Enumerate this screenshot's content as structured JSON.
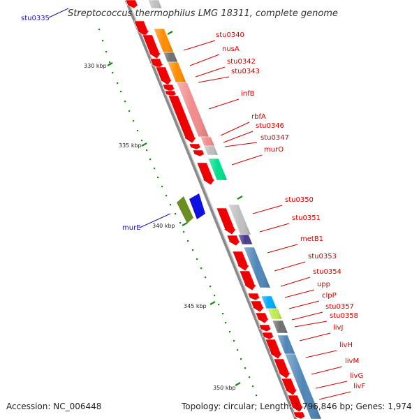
{
  "title": "Streptococcus thermophilus LMG 18311, complete genome",
  "accession": "Accession: NC_006448",
  "topology": "Topology: circular; Length: 1,796,846 bp; Genes: 1,974",
  "colors": {
    "backbone": "#888888",
    "gene_arrow": "#ee0000",
    "label": "#d40000",
    "left_label": "#1a1a9c",
    "tick": "#1a8a1a"
  },
  "kbp_labels": [
    "330 kbp",
    "335 kbp",
    "340 kbp",
    "345 kbp",
    "350 kbp"
  ],
  "left_genes": [
    "stu0335",
    "murE"
  ],
  "gene_labels": [
    "stu0340",
    "nusA",
    "stu0342",
    "stu0343",
    "infB",
    "rbfA",
    "stu0346",
    "stu0347",
    "murO",
    "stu0350",
    "stu0351",
    "metB1",
    "stu0353",
    "stu0354",
    "upp",
    "clpP",
    "stu0357",
    "stu0358",
    "livJ",
    "livH",
    "livM",
    "livG",
    "livF"
  ]
}
